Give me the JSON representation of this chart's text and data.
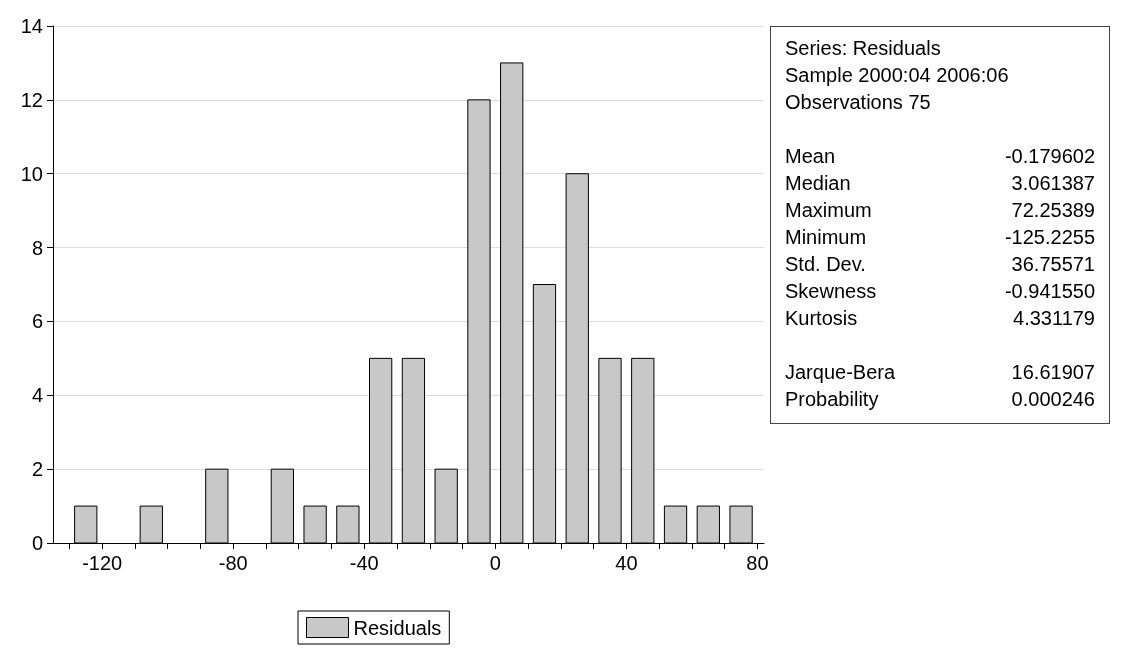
{
  "chart_data": [
    {
      "type": "histogram",
      "bins": [
        -130,
        -120,
        -110,
        -100,
        -90,
        -80,
        -70,
        -60,
        -50,
        -40,
        -30,
        -20,
        -10,
        0,
        10,
        20,
        30,
        40,
        50,
        60,
        70,
        80
      ],
      "series": [
        {
          "name": "Residuals",
          "color": "#c8c8c8",
          "values": [
            1,
            0,
            1,
            0,
            2,
            0,
            2,
            1,
            1,
            5,
            5,
            2,
            12,
            13,
            7,
            10,
            5,
            5,
            1,
            1,
            1
          ]
        }
      ],
      "xlim": [
        -135,
        82
      ],
      "xticks": [
        {
          "value": -130,
          "label": null
        },
        -120,
        {
          "value": -110,
          "label": null
        },
        {
          "value": -100,
          "label": null
        },
        {
          "value": -90,
          "label": null
        },
        -80,
        {
          "value": -70,
          "label": null
        },
        {
          "value": -60,
          "label": null
        },
        {
          "value": -50,
          "label": null
        },
        -40,
        {
          "value": -30,
          "label": null
        },
        {
          "value": -20,
          "label": null
        },
        {
          "value": -10,
          "label": null
        },
        0,
        {
          "value": 10,
          "label": null
        },
        {
          "value": 20,
          "label": null
        },
        {
          "value": 30,
          "label": null
        },
        40,
        {
          "value": 50,
          "label": null
        },
        {
          "value": 60,
          "label": null
        },
        {
          "value": 70,
          "label": null
        },
        80
      ],
      "ylim": [
        0,
        14
      ],
      "yticks": [
        0,
        2,
        4,
        6,
        8,
        10,
        12,
        14
      ],
      "grid": "y",
      "legend": "bottom"
    },
    {
      "type": "other",
      "annotations": [
        "Series: Residuals",
        "Sample 2000:04 2006:06",
        "Observations 75"
      ],
      "categories": [
        "Mean",
        "Median",
        "Maximum",
        "Minimum",
        "Std. Dev.",
        "Skewness",
        "Kurtosis",
        null,
        "Jarque-Bera",
        "Probability"
      ],
      "value_labels": [
        "-0.179602",
        "3.061387",
        "72.25389",
        "-125.2255",
        "36.75571",
        "-0.941550",
        "4.331179",
        null,
        "16.61907",
        "0.000246"
      ]
    }
  ]
}
